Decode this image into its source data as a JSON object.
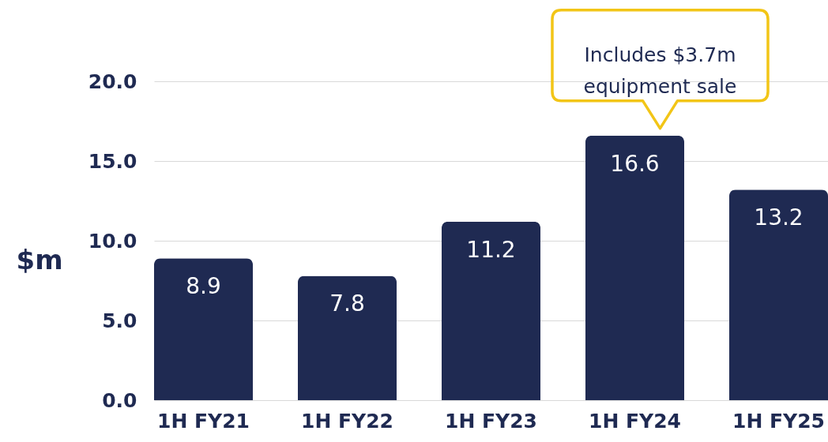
{
  "chart_data": {
    "type": "bar",
    "ylabel": "$m",
    "categories": [
      "1H FY21",
      "1H FY22",
      "1H FY23",
      "1H FY24",
      "1H FY25"
    ],
    "values": [
      8.9,
      7.8,
      11.2,
      16.6,
      13.2
    ],
    "color": "#1f2a52",
    "ylim": [
      0,
      20
    ],
    "yticks": [
      {
        "value": 0,
        "label": "0.0"
      },
      {
        "value": 5,
        "label": "5.0"
      },
      {
        "value": 10,
        "label": "10.0"
      },
      {
        "value": 15,
        "label": "15.0"
      },
      {
        "value": 20,
        "label": "20.0"
      }
    ],
    "grid": "y",
    "data_labels": true,
    "annotations": [
      {
        "text": "Includes $3.7m equipment sale",
        "x": "1H FY24",
        "y": 16.6
      }
    ]
  }
}
